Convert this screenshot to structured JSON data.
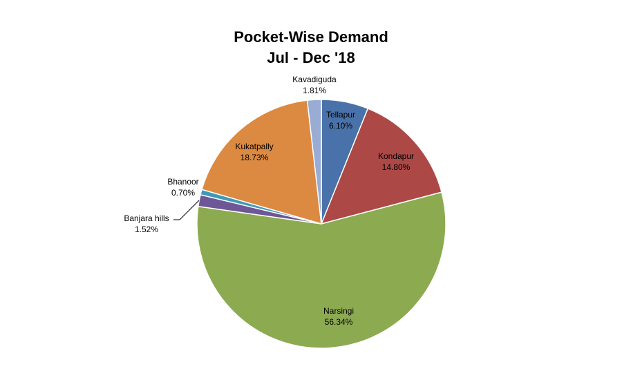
{
  "chart_data": {
    "type": "pie",
    "title_line1": "Pocket-Wise Demand",
    "title_line2": "Jul - Dec '18",
    "slices": [
      {
        "label": "Tellapur",
        "value": 6.1,
        "value_label": "6.10%",
        "color": "#4a72aa"
      },
      {
        "label": "Kondapur",
        "value": 14.8,
        "value_label": "14.80%",
        "color": "#ac4846"
      },
      {
        "label": "Narsingi",
        "value": 56.34,
        "value_label": "56.34%",
        "color": "#8caa50"
      },
      {
        "label": "Banjara hills",
        "value": 1.52,
        "value_label": "1.52%",
        "color": "#6e5796"
      },
      {
        "label": "Bhanoor",
        "value": 0.7,
        "value_label": "0.70%",
        "color": "#3f9ab8"
      },
      {
        "label": "Kukatpally",
        "value": 18.73,
        "value_label": "18.73%",
        "color": "#dc8a42"
      },
      {
        "label": "Kavadiguda",
        "value": 1.81,
        "value_label": "1.81%",
        "color": "#98acd4"
      }
    ],
    "legend": "none"
  }
}
